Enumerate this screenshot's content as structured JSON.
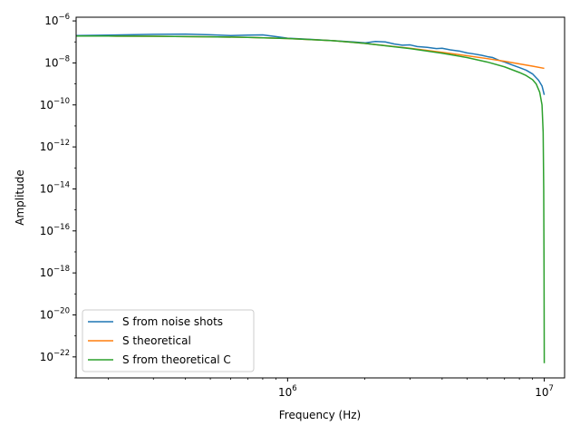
{
  "chart_data": {
    "type": "line",
    "title": "",
    "xlabel": "Frequency (Hz)",
    "ylabel": "Amplitude",
    "xscale": "log",
    "yscale": "log",
    "xlim": [
      150000,
      12000000
    ],
    "ylim": [
      1e-23,
      1.5e-06
    ],
    "grid": false,
    "legend_position": "lower-left",
    "x_ticks": [
      {
        "value": 1000000,
        "base": "10",
        "exp": "6"
      },
      {
        "value": 10000000,
        "base": "10",
        "exp": "7"
      }
    ],
    "y_ticks": [
      {
        "value": 1e-22,
        "base": "10",
        "exp": "−22"
      },
      {
        "value": 1e-20,
        "base": "10",
        "exp": "−20"
      },
      {
        "value": 1e-18,
        "base": "10",
        "exp": "−18"
      },
      {
        "value": 1e-16,
        "base": "10",
        "exp": "−16"
      },
      {
        "value": 1e-14,
        "base": "10",
        "exp": "−14"
      },
      {
        "value": 1e-12,
        "base": "10",
        "exp": "−12"
      },
      {
        "value": 1e-10,
        "base": "10",
        "exp": "−10"
      },
      {
        "value": 1e-08,
        "base": "10",
        "exp": "−8"
      },
      {
        "value": 1e-06,
        "base": "10",
        "exp": "−6"
      }
    ],
    "series": [
      {
        "name": "S from noise shots",
        "color": "#1f77b4",
        "x": [
          150000,
          200000,
          300000,
          400000,
          500000,
          600000,
          700000,
          800000,
          900000,
          1000000,
          1200000,
          1500000,
          1800000,
          2000000,
          2200000,
          2400000,
          2600000,
          2800000,
          3000000,
          3200000,
          3500000,
          3800000,
          4000000,
          4300000,
          4700000,
          5000000,
          5300000,
          5700000,
          6000000,
          6300000,
          6700000,
          7000000,
          7500000,
          8000000,
          8500000,
          9000000,
          9500000,
          9800000,
          10000000
        ],
        "y": [
          2e-07,
          2.1e-07,
          2.3e-07,
          2.35e-07,
          2.2e-07,
          2e-07,
          2.1e-07,
          2.15e-07,
          1.8e-07,
          1.5e-07,
          1.35e-07,
          1.15e-07,
          1e-07,
          9e-08,
          1.05e-07,
          1e-07,
          8e-08,
          7e-08,
          7.2e-08,
          6e-08,
          5.5e-08,
          4.8e-08,
          5e-08,
          4.2e-08,
          3.6e-08,
          3e-08,
          2.7e-08,
          2.3e-08,
          2e-08,
          1.8e-08,
          1.3e-08,
          1.1e-08,
          8e-09,
          6e-09,
          4.5e-09,
          3e-09,
          1.5e-09,
          8e-10,
          3e-10
        ]
      },
      {
        "name": "S theoretical",
        "color": "#ff7f0e",
        "x": [
          150000,
          200000,
          300000,
          400000,
          500000,
          700000,
          1000000,
          1500000,
          2000000,
          3000000,
          4000000,
          5000000,
          6000000,
          7000000,
          8000000,
          9000000,
          10000000
        ],
        "y": [
          1.9e-07,
          1.9e-07,
          1.85e-07,
          1.8e-07,
          1.75e-07,
          1.65e-07,
          1.45e-07,
          1.15e-07,
          8.5e-08,
          5e-08,
          3.2e-08,
          2.2e-08,
          1.6e-08,
          1.2e-08,
          9e-09,
          7e-09,
          5.5e-09
        ]
      },
      {
        "name": "S from theoretical C",
        "color": "#2ca02c",
        "x": [
          150000,
          200000,
          300000,
          400000,
          500000,
          700000,
          1000000,
          1500000,
          2000000,
          3000000,
          4000000,
          5000000,
          6000000,
          7000000,
          8000000,
          8500000,
          9000000,
          9300000,
          9600000,
          9800000,
          9900000,
          9950000,
          9980000,
          10000000
        ],
        "y": [
          1.9e-07,
          1.9e-07,
          1.85e-07,
          1.8e-07,
          1.75e-07,
          1.65e-07,
          1.45e-07,
          1.15e-07,
          8.5e-08,
          4.8e-08,
          2.9e-08,
          1.8e-08,
          1.1e-08,
          6.5e-09,
          3.5e-09,
          2.5e-09,
          1.6e-09,
          1e-09,
          4e-10,
          1e-10,
          5e-12,
          1e-14,
          1e-18,
          5e-23
        ]
      }
    ]
  }
}
